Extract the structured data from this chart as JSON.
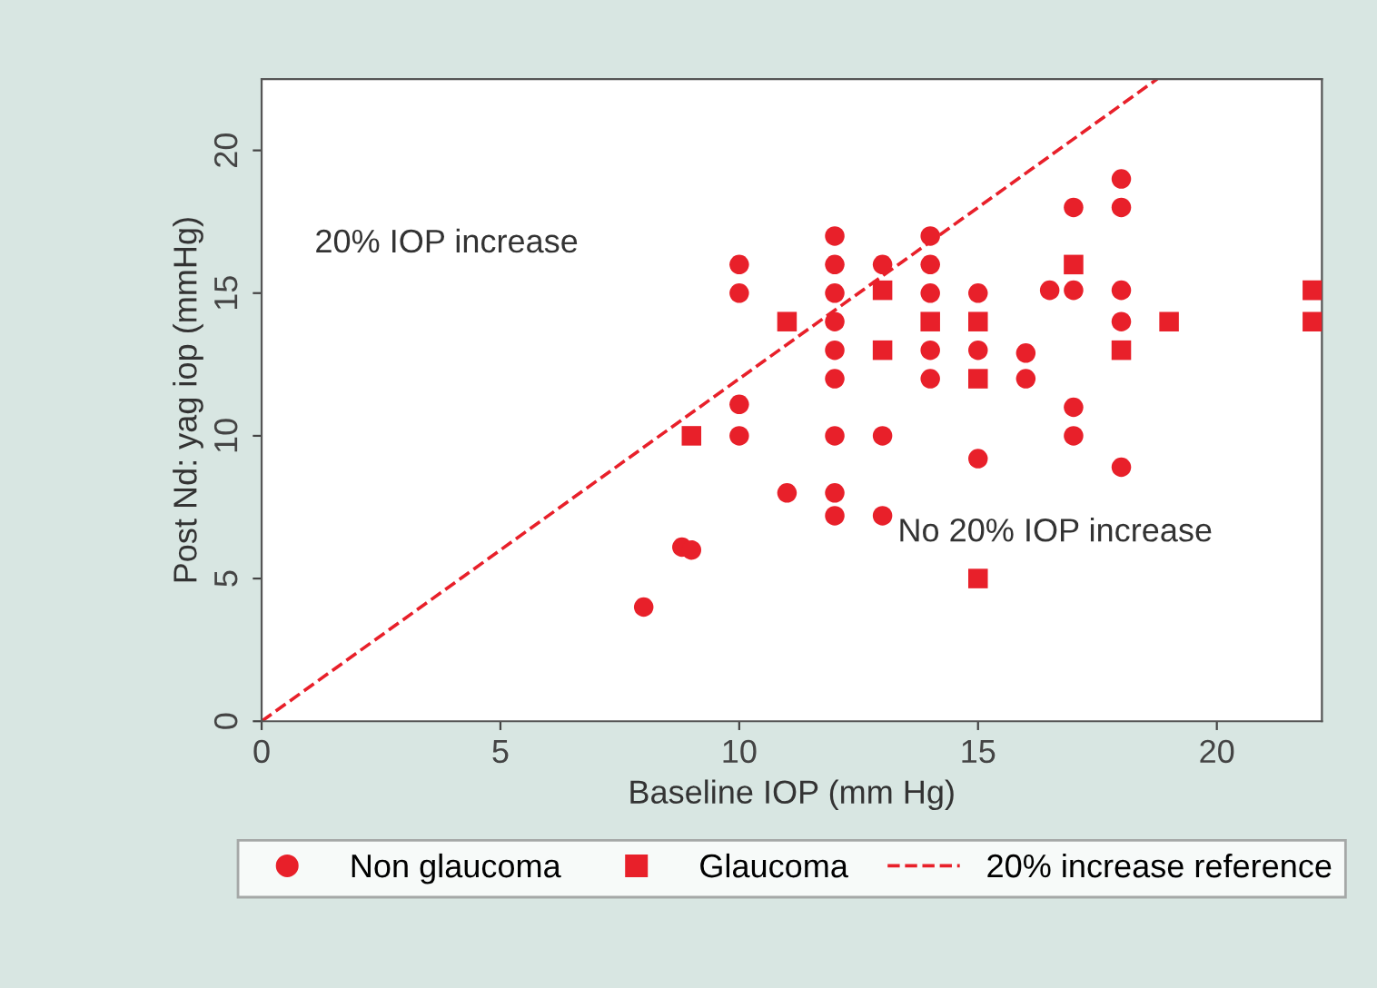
{
  "chart_data": {
    "type": "scatter",
    "xlabel": "Baseline IOP (mm Hg)",
    "ylabel": "Post Nd: yag iop (mmHg)",
    "xlim": [
      0,
      22.2
    ],
    "ylim": [
      0,
      22.5
    ],
    "xticks": [
      0,
      5,
      10,
      15,
      20
    ],
    "yticks": [
      0,
      5,
      10,
      15,
      20
    ],
    "grid": false,
    "legend": "bottom",
    "annotations": [
      "20% IOP increase",
      "No 20% IOP increase"
    ],
    "series": [
      {
        "name": "Non glaucoma",
        "color": "#e8202a",
        "marker": "circle",
        "x": [
          8,
          8.8,
          9,
          10,
          10,
          10,
          10,
          11,
          12,
          12,
          12,
          12,
          12,
          12,
          12,
          12,
          12,
          13,
          13,
          13,
          14,
          14,
          14,
          14,
          14,
          15,
          15,
          15,
          16,
          16,
          16.5,
          17,
          17,
          17,
          17,
          18,
          18,
          18,
          18,
          18
        ],
        "values": [
          4,
          6.1,
          6,
          16,
          15,
          11.1,
          10,
          8,
          17,
          16,
          15,
          14,
          13,
          12,
          10,
          8,
          7.2,
          16,
          10,
          7.2,
          17,
          16,
          15,
          13,
          12,
          15,
          13,
          9.2,
          12.9,
          12,
          15.1,
          18,
          15.1,
          11,
          10,
          19,
          18,
          15.1,
          14,
          8.9
        ]
      },
      {
        "name": "Glaucoma",
        "color": "#e8202a",
        "marker": "square",
        "x": [
          9,
          11,
          13,
          13,
          14,
          15,
          15,
          15,
          17,
          18,
          19,
          22,
          22
        ],
        "values": [
          10,
          14,
          15.1,
          13,
          14,
          14,
          12,
          5,
          16,
          13,
          14,
          15.1,
          14
        ]
      },
      {
        "name": "20% increase reference",
        "type": "line",
        "color": "#e8202a",
        "line_style": "dashed",
        "marker": "none",
        "x": [
          0,
          18.75
        ],
        "values": [
          0,
          22.5
        ]
      }
    ]
  }
}
